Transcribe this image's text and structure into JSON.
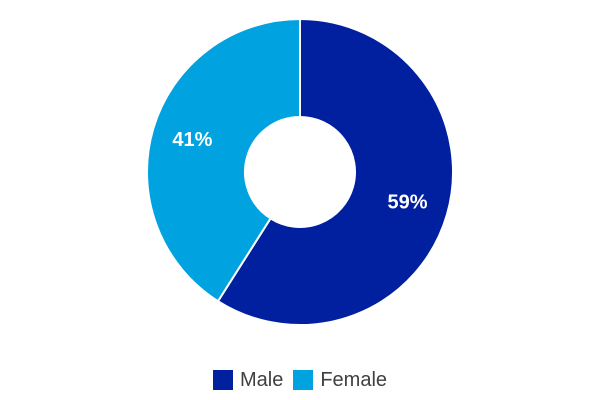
{
  "chart_data": {
    "type": "pie",
    "variant": "donut",
    "categories": [
      "Male",
      "Female"
    ],
    "values": [
      59,
      41
    ],
    "data_labels": [
      "59%",
      "41%"
    ],
    "colors": [
      "#00209F",
      "#00A2E0"
    ],
    "legend_position": "bottom"
  },
  "legend": {
    "items": [
      {
        "label": "Male",
        "color": "#00209F"
      },
      {
        "label": "Female",
        "color": "#00A2E0"
      }
    ]
  }
}
